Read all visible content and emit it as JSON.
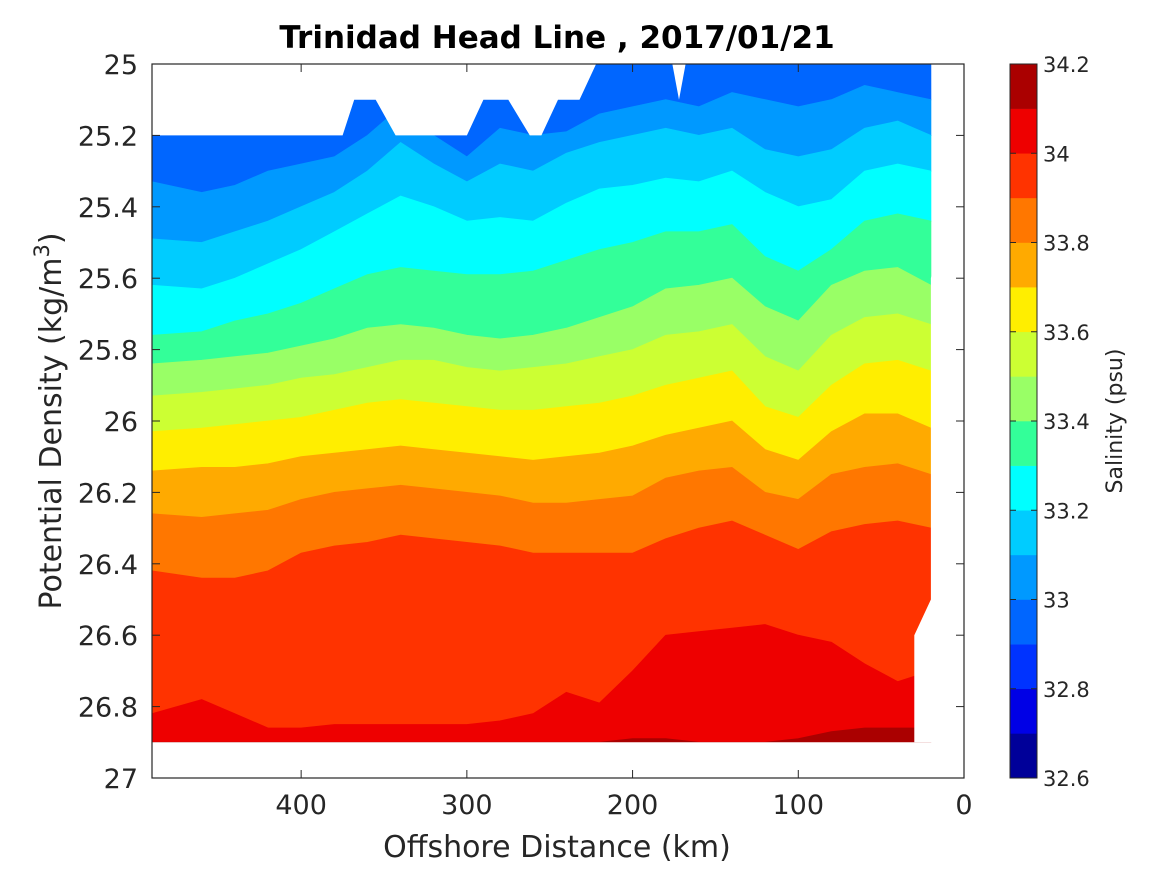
{
  "chart_data": {
    "type": "heatmap",
    "subtype": "filled-contour",
    "title": "Trinidad Head Line , 2017/01/21",
    "xlabel": "Offshore Distance (km)",
    "ylabel_main": "Potential Density (kg/m",
    "ylabel_sup": "3",
    "ylabel_close": ")",
    "colorbar_label": "Salinity (psu)",
    "xlim": [
      490,
      0
    ],
    "ylim": [
      25.0,
      27.0
    ],
    "y_reversed": true,
    "x_ticks": [
      400,
      300,
      200,
      100,
      0
    ],
    "x_tick_labels": [
      "400",
      "300",
      "200",
      "100",
      "0"
    ],
    "y_ticks": [
      25,
      25.2,
      25.4,
      25.6,
      25.8,
      26,
      26.2,
      26.4,
      26.6,
      26.8,
      27
    ],
    "y_tick_labels": [
      "25",
      "25.2",
      "25.4",
      "25.6",
      "25.8",
      "26",
      "26.2",
      "26.4",
      "26.6",
      "26.8",
      "27"
    ],
    "colorbar_ticks": [
      32.6,
      32.8,
      33,
      33.2,
      33.4,
      33.6,
      33.8,
      34,
      34.2
    ],
    "colorbar_tick_labels": [
      "32.6",
      "32.8",
      "33",
      "33.2",
      "33.4",
      "33.6",
      "33.8",
      "34",
      "34.2"
    ],
    "levels": [
      32.6,
      32.7,
      32.8,
      32.9,
      33.0,
      33.1,
      33.2,
      33.3,
      33.4,
      33.5,
      33.6,
      33.7,
      33.8,
      33.9,
      34.0,
      34.1,
      34.2
    ],
    "level_colors": [
      "#000099",
      "#0000e6",
      "#0033ff",
      "#0066ff",
      "#0099ff",
      "#00ccff",
      "#00ffff",
      "#33ff99",
      "#99ff66",
      "#ccff33",
      "#ffee00",
      "#ffaa00",
      "#ff7700",
      "#ff3300",
      "#ee0000",
      "#aa0000"
    ],
    "distance_km": [
      490,
      460,
      440,
      420,
      400,
      380,
      360,
      340,
      320,
      300,
      280,
      260,
      240,
      220,
      200,
      180,
      160,
      140,
      120,
      100,
      80,
      60,
      40,
      20
    ],
    "salinity_contours": [
      {
        "level": 33.0,
        "density": [
          25.33,
          25.36,
          25.34,
          25.3,
          25.28,
          25.26,
          25.2,
          25.12,
          25.2,
          25.26,
          25.18,
          25.2,
          25.19,
          25.14,
          25.12,
          25.1,
          25.12,
          25.08,
          25.1,
          25.12,
          25.1,
          25.06,
          25.08,
          25.1
        ]
      },
      {
        "level": 33.1,
        "density": [
          25.49,
          25.5,
          25.47,
          25.44,
          25.4,
          25.36,
          25.3,
          25.22,
          25.28,
          25.33,
          25.28,
          25.3,
          25.25,
          25.22,
          25.2,
          25.18,
          25.2,
          25.18,
          25.24,
          25.26,
          25.24,
          25.18,
          25.16,
          25.2
        ]
      },
      {
        "level": 33.2,
        "density": [
          25.62,
          25.63,
          25.6,
          25.56,
          25.52,
          25.47,
          25.42,
          25.37,
          25.4,
          25.44,
          25.43,
          25.44,
          25.39,
          25.35,
          25.34,
          25.32,
          25.33,
          25.3,
          25.36,
          25.4,
          25.38,
          25.3,
          25.28,
          25.3
        ]
      },
      {
        "level": 33.3,
        "density": [
          25.76,
          25.75,
          25.72,
          25.7,
          25.67,
          25.63,
          25.59,
          25.57,
          25.58,
          25.59,
          25.59,
          25.58,
          25.55,
          25.52,
          25.5,
          25.47,
          25.47,
          25.45,
          25.54,
          25.58,
          25.52,
          25.44,
          25.42,
          25.44
        ]
      },
      {
        "level": 33.4,
        "density": [
          25.84,
          25.83,
          25.82,
          25.81,
          25.79,
          25.77,
          25.74,
          25.73,
          25.74,
          25.76,
          25.77,
          25.76,
          25.74,
          25.71,
          25.68,
          25.63,
          25.62,
          25.6,
          25.68,
          25.72,
          25.62,
          25.58,
          25.57,
          25.62
        ]
      },
      {
        "level": 33.5,
        "density": [
          25.93,
          25.92,
          25.91,
          25.9,
          25.88,
          25.87,
          25.85,
          25.83,
          25.83,
          25.85,
          25.86,
          25.85,
          25.84,
          25.82,
          25.8,
          25.76,
          25.75,
          25.73,
          25.82,
          25.86,
          25.76,
          25.71,
          25.7,
          25.73
        ]
      },
      {
        "level": 33.6,
        "density": [
          26.03,
          26.02,
          26.01,
          26.0,
          25.99,
          25.97,
          25.95,
          25.94,
          25.95,
          25.96,
          25.97,
          25.97,
          25.96,
          25.95,
          25.93,
          25.9,
          25.88,
          25.86,
          25.96,
          25.99,
          25.9,
          25.84,
          25.83,
          25.86
        ]
      },
      {
        "level": 33.7,
        "density": [
          26.14,
          26.13,
          26.13,
          26.12,
          26.1,
          26.09,
          26.08,
          26.07,
          26.08,
          26.09,
          26.1,
          26.11,
          26.1,
          26.09,
          26.07,
          26.04,
          26.02,
          26.0,
          26.08,
          26.11,
          26.03,
          25.98,
          25.98,
          26.02
        ]
      },
      {
        "level": 33.8,
        "density": [
          26.26,
          26.27,
          26.26,
          26.25,
          26.22,
          26.2,
          26.19,
          26.18,
          26.19,
          26.2,
          26.21,
          26.23,
          26.23,
          26.22,
          26.21,
          26.16,
          26.14,
          26.13,
          26.2,
          26.22,
          26.15,
          26.13,
          26.12,
          26.15
        ]
      },
      {
        "level": 33.9,
        "density": [
          26.42,
          26.44,
          26.44,
          26.42,
          26.37,
          26.35,
          26.34,
          26.32,
          26.33,
          26.34,
          26.35,
          26.37,
          26.37,
          26.37,
          26.37,
          26.33,
          26.3,
          26.28,
          26.32,
          26.36,
          26.31,
          26.29,
          26.28,
          26.3
        ]
      },
      {
        "level": 34.0,
        "density": [
          26.82,
          26.78,
          26.82,
          26.86,
          26.86,
          26.85,
          26.85,
          26.85,
          26.85,
          26.85,
          26.84,
          26.82,
          26.76,
          26.79,
          26.7,
          26.6,
          26.59,
          26.58,
          26.57,
          26.6,
          26.62,
          26.68,
          26.73,
          26.7
        ]
      },
      {
        "level": 34.1,
        "density": [
          26.9,
          26.9,
          26.9,
          26.9,
          26.9,
          26.9,
          26.9,
          26.9,
          26.9,
          26.9,
          26.9,
          26.9,
          26.9,
          26.9,
          26.89,
          26.89,
          26.9,
          26.9,
          26.9,
          26.89,
          26.87,
          26.86,
          26.86,
          26.86
        ]
      }
    ]
  }
}
